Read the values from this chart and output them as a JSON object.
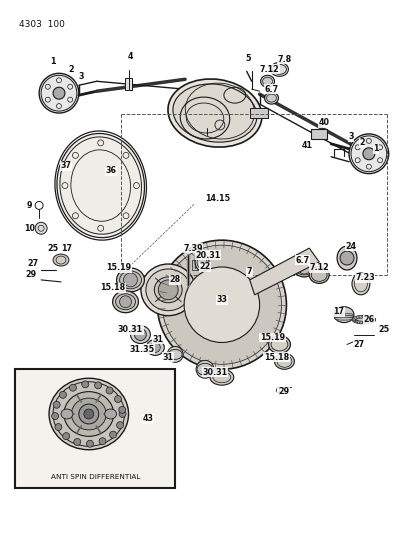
{
  "title": "4303  100",
  "bg_color": "#ffffff",
  "line_color": "#1a1a1a",
  "text_color": "#111111",
  "diagram_title": "ANTI SPIN DIFFERENTIAL",
  "label_fontsize": 5.8,
  "title_fontsize": 6.5
}
